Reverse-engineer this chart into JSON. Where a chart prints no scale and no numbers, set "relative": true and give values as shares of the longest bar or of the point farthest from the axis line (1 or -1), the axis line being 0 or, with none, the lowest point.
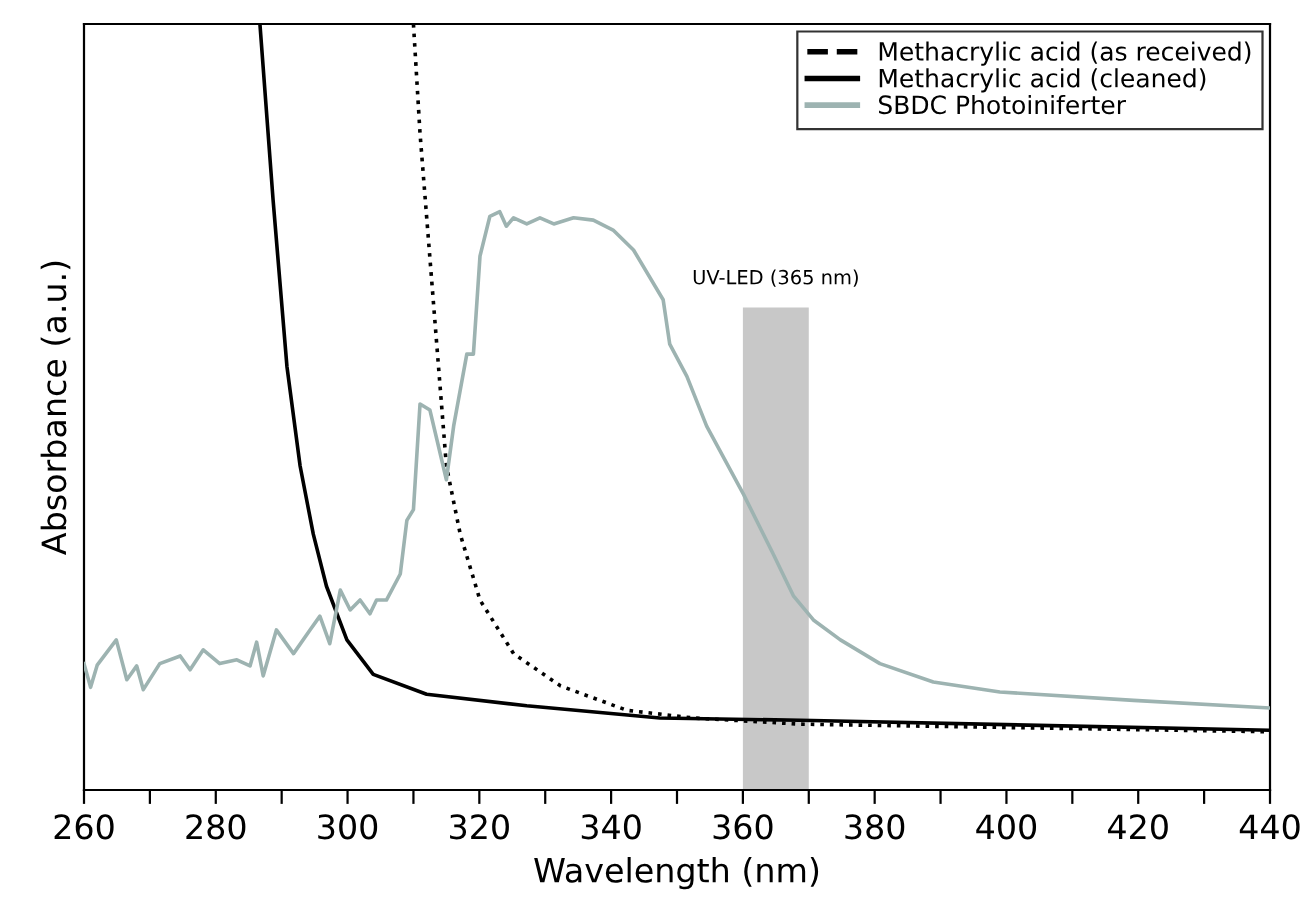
{
  "chart_data": {
    "type": "line",
    "xlabel": "Wavelength (nm)",
    "ylabel": "Absorbance (a.u.)",
    "relative": true,
    "tick_labels": "x",
    "legend": "top right",
    "grid": false,
    "marker": "none",
    "xlim": [
      260,
      440
    ],
    "xticks": [
      260,
      {
        "value": 270,
        "label": null
      },
      280,
      {
        "value": 290,
        "label": null
      },
      300,
      {
        "value": 310,
        "label": null
      },
      320,
      {
        "value": 330,
        "label": null
      },
      340,
      {
        "value": 350,
        "label": null
      },
      360,
      {
        "value": 370,
        "label": null
      },
      380,
      {
        "value": 390,
        "label": null
      },
      400,
      {
        "value": 410,
        "label": null
      },
      420,
      {
        "value": 430,
        "label": null
      },
      440
    ],
    "bands": [
      {
        "axis": "x",
        "from": 360,
        "to": 370,
        "label": "UV-LED (365 nm)",
        "color": "#c8c8c8"
      }
    ],
    "series": [
      {
        "name": "Methacrylic acid (as received)",
        "color": "#000000",
        "line_style": "dotted",
        "x": [
          310,
          311,
          313,
          315,
          317.1,
          320.1,
          325.2,
          332.3,
          342.4,
          352.5,
          368.7,
          440
        ],
        "values": [
          1.0,
          0.857,
          0.64,
          0.423,
          0.334,
          0.248,
          0.178,
          0.136,
          0.104,
          0.094,
          0.086,
          0.076
        ]
      },
      {
        "name": "Methacrylic acid (cleaned)",
        "color": "#000000",
        "line_style": "solid",
        "x": [
          286.7,
          288.7,
          290.8,
          292.8,
          294.8,
          296.8,
          299.9,
          303.9,
          312,
          327.2,
          347.4,
          368.7,
          440
        ],
        "values": [
          1.0,
          0.77,
          0.553,
          0.423,
          0.334,
          0.266,
          0.196,
          0.151,
          0.125,
          0.11,
          0.094,
          0.091,
          0.078
        ]
      },
      {
        "name": "SBDC Photoiniferter",
        "color": "#9db3b1",
        "line_style": "solid",
        "x": [
          260,
          261,
          262,
          264.9,
          266.5,
          268,
          269,
          271.5,
          274.6,
          276.1,
          278.1,
          280.6,
          283.2,
          285.2,
          286.2,
          287.2,
          289.2,
          291.8,
          294.3,
          295.8,
          297.3,
          298.9,
          300.4,
          301.9,
          303.4,
          304.4,
          305.9,
          308,
          309,
          310,
          311,
          312.5,
          315,
          316.1,
          318.1,
          319.1,
          320.1,
          321.6,
          323.1,
          324.1,
          325.2,
          327.2,
          329.2,
          331.3,
          334.3,
          337.3,
          340.3,
          343.4,
          347.9,
          348.9,
          351.5,
          354.5,
          360.1,
          364.6,
          367.7,
          370.7,
          374.8,
          380.8,
          388.9,
          399,
          419.3,
          440
        ],
        "values": [
          0.165,
          0.134,
          0.163,
          0.196,
          0.144,
          0.162,
          0.131,
          0.165,
          0.175,
          0.157,
          0.183,
          0.165,
          0.17,
          0.162,
          0.193,
          0.149,
          0.209,
          0.178,
          0.209,
          0.227,
          0.191,
          0.261,
          0.235,
          0.248,
          0.23,
          0.248,
          0.248,
          0.282,
          0.352,
          0.366,
          0.504,
          0.496,
          0.405,
          0.475,
          0.569,
          0.569,
          0.697,
          0.749,
          0.755,
          0.736,
          0.747,
          0.739,
          0.747,
          0.739,
          0.747,
          0.744,
          0.731,
          0.705,
          0.64,
          0.582,
          0.54,
          0.475,
          0.386,
          0.308,
          0.253,
          0.222,
          0.196,
          0.165,
          0.141,
          0.128,
          0.117,
          0.107
        ]
      }
    ]
  }
}
